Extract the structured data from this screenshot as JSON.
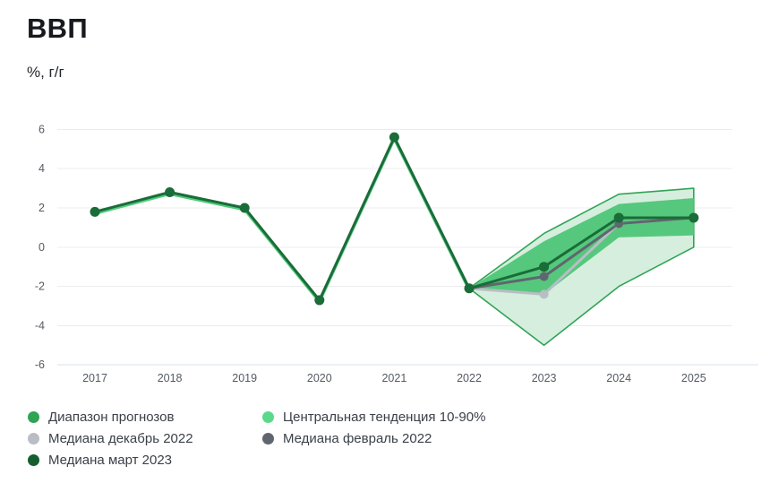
{
  "header": {
    "title": "ВВП",
    "subtitle": "%, г/г"
  },
  "colors": {
    "range_border_green": "#2fa455",
    "range_fill_light": "#d6eedd",
    "tendency_fill_green": "#55c87d",
    "history_edge_green": "#4ecb7c",
    "median_march_green": "#1a6c38",
    "median_march_dot": "#155f2e",
    "median_february_gray": "#60666f",
    "median_december_gray": "#b9bdc5",
    "gridline": "#ececee",
    "axis_bottom_line": "#d9e0f0",
    "tick_text": "#545a63",
    "legend_text": "#3b4049"
  },
  "legend": {
    "columns": [
      {
        "items": [
          {
            "label": "Диапазон прогнозов",
            "color": "#2fa455"
          },
          {
            "label": "Медиана декабрь 2022",
            "color": "#b9bdc5"
          },
          {
            "label": "Медиана март 2023",
            "color": "#155f2e"
          }
        ]
      },
      {
        "items": [
          {
            "label": "Центральная тенденция 10-90%",
            "color": "#5bd98a"
          },
          {
            "label": "Медиана февраль 2022",
            "color": "#60666f"
          }
        ]
      }
    ]
  },
  "chart_data": {
    "type": "line",
    "title": "ВВП",
    "ylabel": "%, г/г",
    "xlabel": "",
    "categories": [
      2017,
      2018,
      2019,
      2020,
      2021,
      2022,
      2023,
      2024,
      2025
    ],
    "ylim": [
      -6,
      6
    ],
    "yticks": [
      6,
      4,
      2,
      0,
      -2,
      -4,
      -6
    ],
    "grid": "horizontal-only",
    "legend_position": "bottom",
    "forecast_start_category": 2022,
    "series": [
      {
        "name": "Медиана декабрь 2022",
        "color": "#b9bdc5",
        "dot_radius": 5,
        "values": [
          null,
          null,
          null,
          null,
          null,
          -2.1,
          -2.4,
          1.2,
          1.5
        ]
      },
      {
        "name": "Медиана февраль 2022",
        "color": "#60666f",
        "dot_radius": 5,
        "values": [
          null,
          null,
          null,
          null,
          null,
          -2.1,
          -1.5,
          1.2,
          1.5
        ]
      },
      {
        "name": "Медиана март 2023",
        "color": "#1a6c38",
        "dot_radius": 5.5,
        "values": [
          1.8,
          2.8,
          2.0,
          -2.7,
          5.6,
          -2.1,
          -1.0,
          1.5,
          1.5
        ]
      }
    ],
    "bands": [
      {
        "name": "Диапазон прогнозов",
        "fill": "#d6eedd",
        "stroke": "#2fa455",
        "upper": [
          1.8,
          2.8,
          2.0,
          -2.7,
          5.6,
          -2.1,
          0.7,
          2.7,
          3.0
        ],
        "lower": [
          1.8,
          2.8,
          2.0,
          -2.7,
          5.6,
          -2.1,
          -5.0,
          -2.0,
          0.0
        ]
      },
      {
        "name": "Центральная тенденция 10-90%",
        "fill": "#55c87d",
        "stroke": "none",
        "upper": [
          1.8,
          2.8,
          2.0,
          -2.7,
          5.6,
          -2.1,
          0.3,
          2.2,
          2.5
        ],
        "lower": [
          1.8,
          2.8,
          2.0,
          -2.7,
          5.6,
          -2.1,
          -2.4,
          0.5,
          0.6
        ]
      }
    ]
  }
}
